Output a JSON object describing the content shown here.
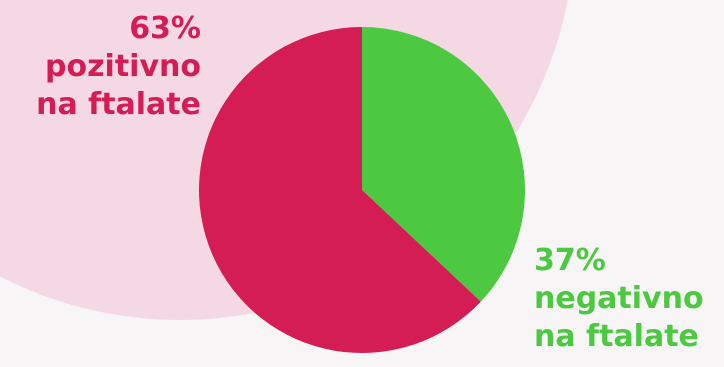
{
  "colors": {
    "pozitivno": "#d41c55",
    "negativno": "#4cc940",
    "background": "#f7f5f6",
    "blob": "#f4d9e4"
  },
  "labels": {
    "pozitivno": {
      "percent": "63%",
      "line1": "pozitivno",
      "line2": "na ftalate"
    },
    "negativno": {
      "percent": "37%",
      "line1": "negativno",
      "line2": "na ftalate"
    }
  },
  "chart_data": {
    "type": "pie",
    "title": "",
    "slices": [
      {
        "name": "pozitivno na ftalate",
        "value": 63,
        "color": "#d41c55"
      },
      {
        "name": "negativno na ftalate",
        "value": 37,
        "color": "#4cc940"
      }
    ]
  }
}
